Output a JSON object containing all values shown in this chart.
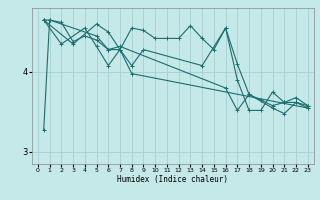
{
  "xlabel": "Humidex (Indice chaleur)",
  "ylabel": "",
  "bg_color": "#c5e8e8",
  "grid_color": "#a8d0d0",
  "line_color": "#1a6e6e",
  "xlim": [
    -0.5,
    23.5
  ],
  "ylim": [
    2.85,
    4.8
  ],
  "yticks": [
    3,
    4
  ],
  "xticks": [
    0,
    1,
    2,
    3,
    4,
    5,
    6,
    7,
    8,
    9,
    10,
    11,
    12,
    13,
    14,
    15,
    16,
    17,
    18,
    19,
    20,
    21,
    22,
    23
  ],
  "series": [
    [
      0.5,
      4.65,
      1,
      4.65,
      2,
      4.62,
      3,
      4.38,
      4,
      4.45,
      5,
      4.4,
      6,
      4.28,
      7,
      4.28,
      8,
      4.55,
      9,
      4.52,
      10,
      4.42,
      11,
      4.42,
      12,
      4.42,
      13,
      4.58,
      14,
      4.42,
      15,
      4.28,
      16,
      4.55,
      17,
      4.1,
      18,
      3.72,
      19,
      3.65,
      20,
      3.58,
      21,
      3.62,
      22,
      3.62,
      23,
      3.58
    ],
    [
      0.5,
      4.65,
      3,
      4.35,
      5,
      4.6,
      6,
      4.5,
      7,
      4.28,
      8,
      4.08,
      9,
      4.28,
      14,
      4.08,
      16,
      4.55,
      17,
      3.9,
      18,
      3.52,
      19,
      3.52,
      20,
      3.75,
      21,
      3.62,
      22,
      3.68,
      23,
      3.58
    ],
    [
      0.5,
      3.28,
      1,
      4.65,
      5,
      4.45,
      6,
      4.28,
      7,
      4.32,
      16,
      3.8,
      17,
      3.52,
      18,
      3.72,
      20,
      3.55,
      21,
      3.48,
      22,
      3.62,
      23,
      3.55
    ],
    [
      0.5,
      4.65,
      2,
      4.35,
      4,
      4.55,
      5,
      4.32,
      6,
      4.08,
      7,
      4.28,
      8,
      3.98,
      23,
      3.55
    ]
  ]
}
